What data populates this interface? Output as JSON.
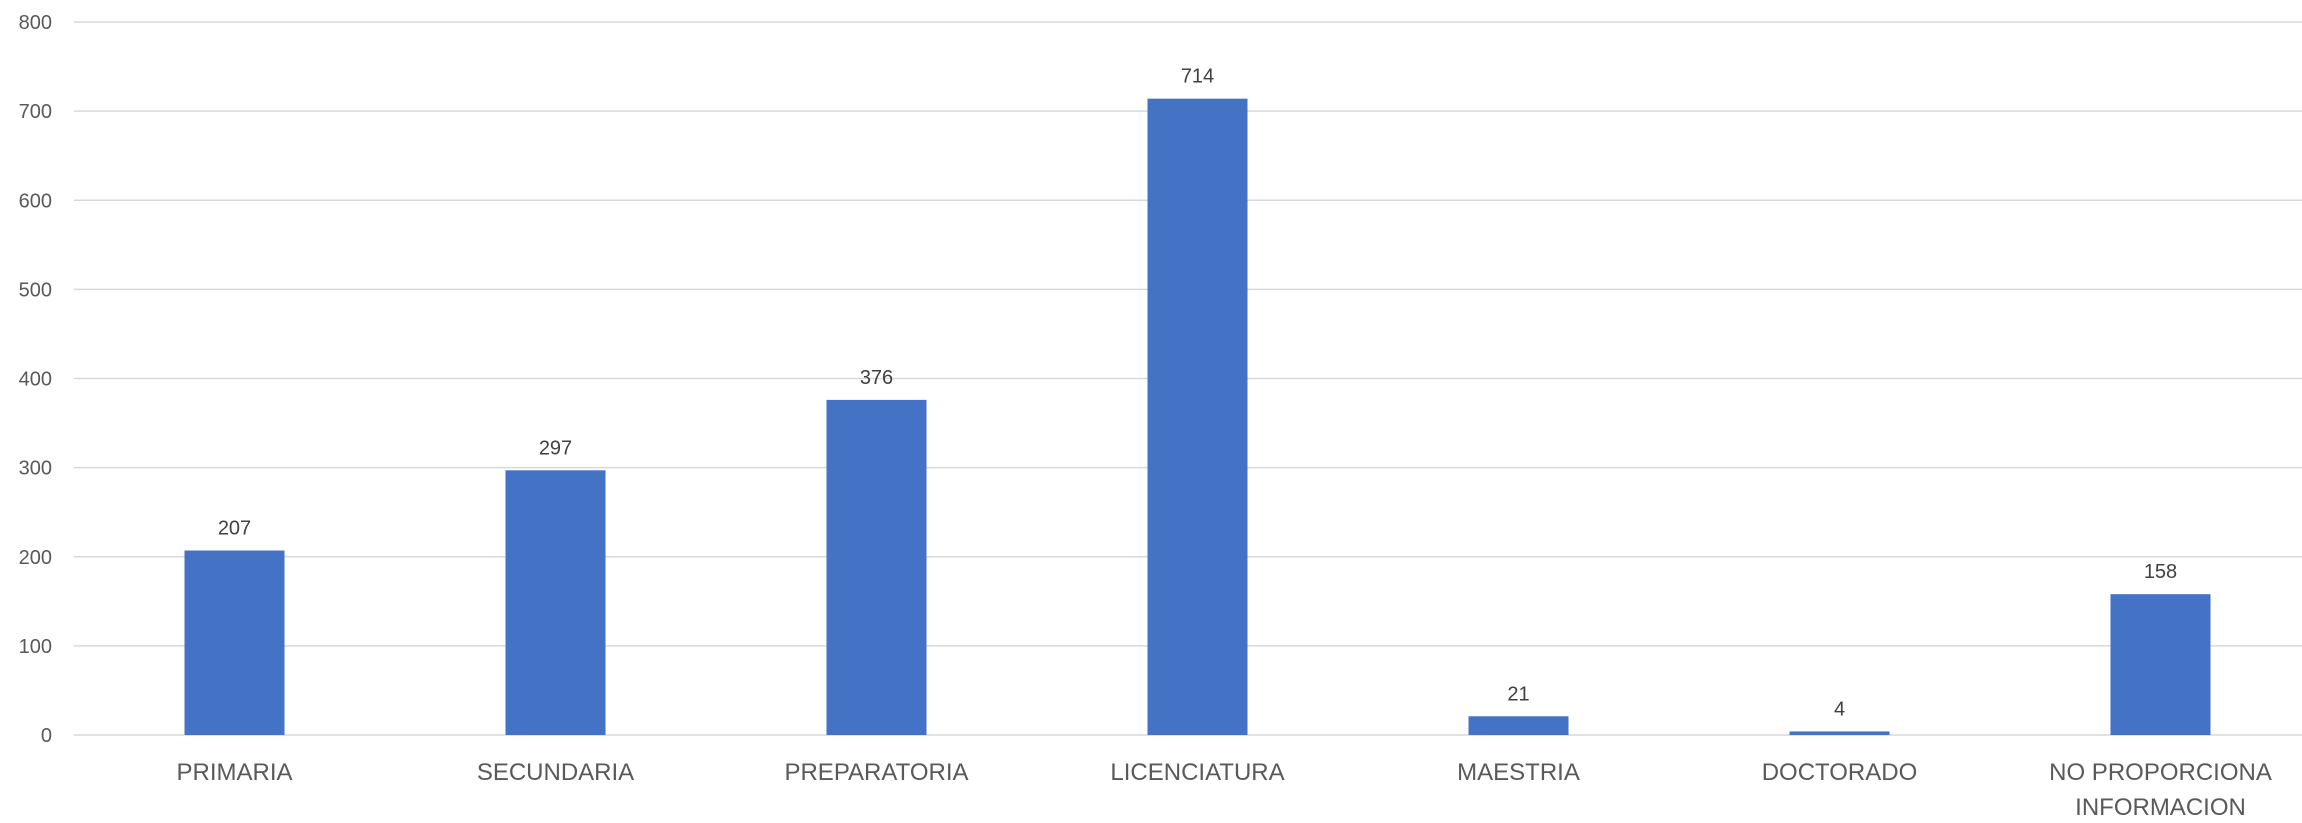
{
  "chart_data": {
    "type": "bar",
    "title": "",
    "xlabel": "",
    "ylabel": "",
    "categories": [
      "PRIMARIA",
      "SECUNDARIA",
      "PREPARATORIA",
      "LICENCIATURA",
      "MAESTRIA",
      "DOCTORADO",
      "NO PROPORCIONA INFORMACION"
    ],
    "category_lines": [
      [
        "PRIMARIA"
      ],
      [
        "SECUNDARIA"
      ],
      [
        "PREPARATORIA"
      ],
      [
        "LICENCIATURA"
      ],
      [
        "MAESTRIA"
      ],
      [
        "DOCTORADO"
      ],
      [
        "NO PROPORCIONA",
        "INFORMACION"
      ]
    ],
    "values": [
      207,
      297,
      376,
      714,
      21,
      4,
      158
    ],
    "data_labels": [
      "207",
      "297",
      "376",
      "714",
      "21",
      "4",
      "158"
    ],
    "ylim": [
      0,
      800
    ],
    "yticks": [
      0,
      100,
      200,
      300,
      400,
      500,
      600,
      700,
      800
    ],
    "ytick_labels": [
      "0",
      "100",
      "200",
      "300",
      "400",
      "500",
      "600",
      "700",
      "800"
    ],
    "grid": true,
    "legend": "none",
    "bar_color": "#4472C4"
  }
}
